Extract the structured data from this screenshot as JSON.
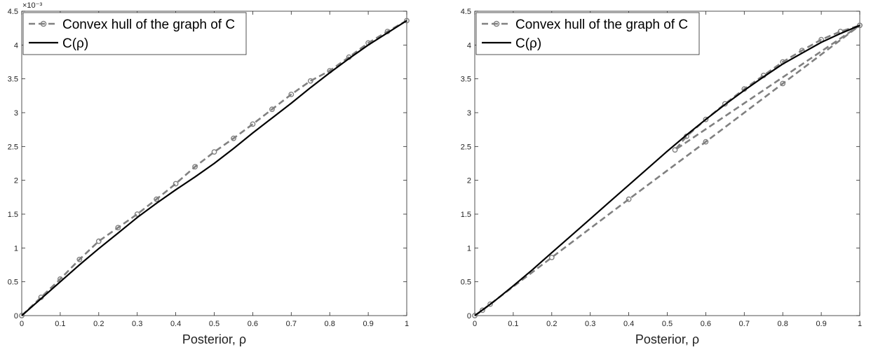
{
  "chart_data": [
    {
      "type": "line",
      "xlabel": "Posterior, ρ",
      "ylabel": "",
      "xlim": [
        0,
        1
      ],
      "ylim": [
        0,
        4.5
      ],
      "y_multiplier": "×10⁻³",
      "x_ticks": [
        "0",
        "0.1",
        "0.2",
        "0.3",
        "0.4",
        "0.5",
        "0.6",
        "0.7",
        "0.8",
        "0.9",
        "1"
      ],
      "y_ticks": [
        "0",
        "0.5",
        "1",
        "1.5",
        "2",
        "2.5",
        "3",
        "3.5",
        "4",
        "4.5"
      ],
      "legend_position": "top-left",
      "grid": false,
      "series": [
        {
          "name": "Convex hull of the graph of C",
          "color": "#808080",
          "style": "dashed-circle-markers",
          "x": [
            0,
            0.05,
            0.1,
            0.15,
            0.2,
            0.25,
            0.3,
            0.35,
            0.4,
            0.45,
            0.5,
            0.55,
            0.6,
            0.65,
            0.7,
            0.75,
            0.8,
            0.85,
            0.9,
            0.95,
            1.0
          ],
          "y": [
            0,
            0.27,
            0.54,
            0.83,
            1.1,
            1.3,
            1.5,
            1.72,
            1.95,
            2.2,
            2.42,
            2.62,
            2.83,
            3.05,
            3.27,
            3.47,
            3.62,
            3.82,
            4.03,
            4.2,
            4.36
          ]
        },
        {
          "name": "C(ρ)",
          "color": "#000000",
          "style": "solid",
          "x": [
            0,
            0.05,
            0.1,
            0.15,
            0.2,
            0.25,
            0.3,
            0.35,
            0.4,
            0.45,
            0.5,
            0.55,
            0.6,
            0.65,
            0.7,
            0.75,
            0.8,
            0.85,
            0.9,
            0.95,
            1.0
          ],
          "y": [
            0,
            0.25,
            0.5,
            0.75,
            0.99,
            1.22,
            1.45,
            1.66,
            1.86,
            2.05,
            2.25,
            2.47,
            2.7,
            2.92,
            3.14,
            3.37,
            3.59,
            3.8,
            4.0,
            4.18,
            4.36
          ]
        }
      ]
    },
    {
      "type": "line",
      "xlabel": "Posterior, ρ",
      "ylabel": "",
      "xlim": [
        0,
        1
      ],
      "ylim": [
        0,
        4.5
      ],
      "y_multiplier": "",
      "x_ticks": [
        "0",
        "0.1",
        "0.2",
        "0.3",
        "0.4",
        "0.5",
        "0.6",
        "0.7",
        "0.8",
        "0.9",
        "1"
      ],
      "y_ticks": [
        "0",
        "0.5",
        "1",
        "1.5",
        "2",
        "2.5",
        "3",
        "3.5",
        "4",
        "4.5"
      ],
      "legend_position": "top-left",
      "grid": false,
      "series": [
        {
          "name": "Convex hull of the graph of C",
          "color": "#808080",
          "style": "dashed-circle-markers",
          "x": [
            0,
            0.02,
            0.04,
            0.2,
            0.4,
            0.6,
            0.8,
            1.0,
            0.52,
            0.55,
            0.6,
            0.65,
            0.7,
            0.75,
            0.8,
            0.85,
            0.9,
            0.95,
            1.0
          ],
          "y": [
            0,
            0.08,
            0.17,
            0.86,
            1.72,
            2.57,
            3.43,
            4.29,
            2.45,
            2.65,
            2.9,
            3.13,
            3.35,
            3.55,
            3.75,
            3.92,
            4.08,
            4.2,
            4.29
          ]
        },
        {
          "name": "C(ρ)",
          "color": "#000000",
          "style": "solid",
          "x": [
            0,
            0.05,
            0.1,
            0.15,
            0.2,
            0.25,
            0.3,
            0.35,
            0.4,
            0.45,
            0.5,
            0.55,
            0.6,
            0.65,
            0.7,
            0.75,
            0.8,
            0.85,
            0.9,
            0.95,
            1.0
          ],
          "y": [
            0,
            0.21,
            0.44,
            0.68,
            0.93,
            1.18,
            1.43,
            1.68,
            1.93,
            2.18,
            2.43,
            2.67,
            2.9,
            3.12,
            3.33,
            3.53,
            3.72,
            3.88,
            4.04,
            4.17,
            4.29
          ]
        }
      ]
    }
  ]
}
